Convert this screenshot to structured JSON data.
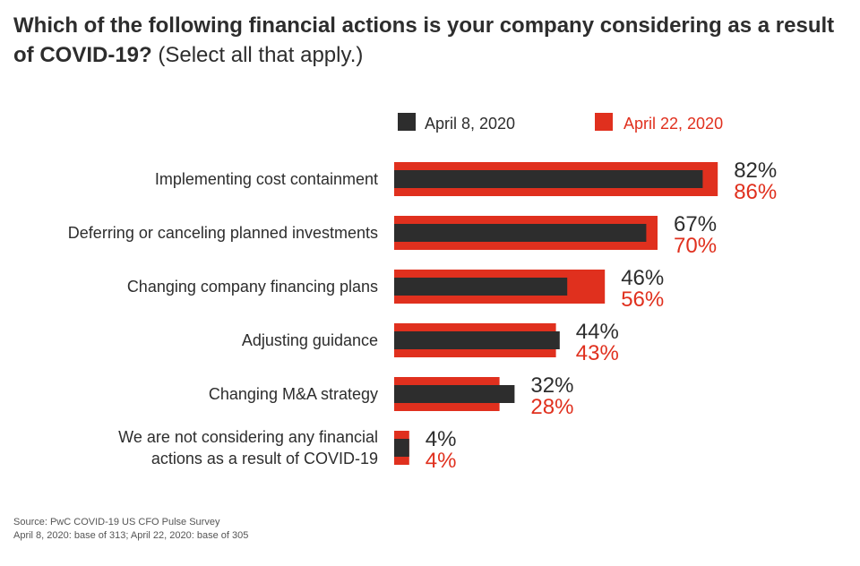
{
  "title": {
    "bold": "Which of the following financial actions is your company considering as a result of COVID-19?",
    "normal": "(Select all that apply.)"
  },
  "colors": {
    "april8": "#2d2d2d",
    "april22": "#e0301e",
    "text": "#2d2d2d"
  },
  "chart_data": {
    "type": "bar",
    "orientation": "horizontal",
    "title": "Which of the following financial actions is your company considering as a result of COVID-19? (Select all that apply.)",
    "xlabel": "",
    "ylabel": "",
    "xlim": [
      0,
      100
    ],
    "grid": false,
    "legend_position": "top",
    "categories": [
      [
        "Implementing cost containment"
      ],
      [
        "Deferring or canceling planned investments"
      ],
      [
        "Changing company financing plans"
      ],
      [
        "Adjusting guidance"
      ],
      [
        "Changing M&A strategy"
      ],
      [
        "We are not considering any financial",
        "actions as a result of COVID-19"
      ]
    ],
    "series": [
      {
        "name": "April 8, 2020",
        "color": "#2d2d2d",
        "values": [
          82,
          67,
          46,
          44,
          32,
          4
        ],
        "labels": [
          "82%",
          "67%",
          "46%",
          "44%",
          "32%",
          "4%"
        ]
      },
      {
        "name": "April 22, 2020",
        "color": "#e0301e",
        "values": [
          86,
          70,
          56,
          43,
          28,
          4
        ],
        "labels": [
          "86%",
          "70%",
          "56%",
          "43%",
          "28%",
          "4%"
        ]
      }
    ]
  },
  "source": {
    "line1": "Source: PwC COVID-19 US CFO Pulse Survey",
    "line2": "April 8, 2020: base of 313; April 22, 2020: base of 305"
  }
}
